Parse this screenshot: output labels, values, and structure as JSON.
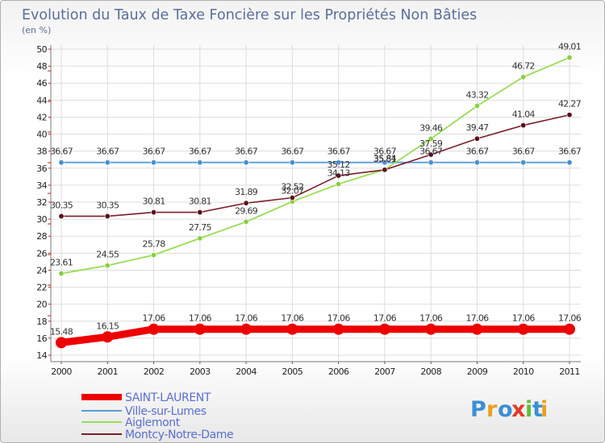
{
  "chart_data": {
    "type": "line",
    "title": "Evolution du Taux de Taxe Foncière sur les Propriétés Non Bâties",
    "subtitle": "(en %)",
    "x": [
      "2000",
      "2001",
      "2002",
      "2003",
      "2004",
      "2005",
      "2006",
      "2007",
      "2008",
      "2009",
      "2010",
      "2011"
    ],
    "ylim": [
      14,
      50
    ],
    "yticks": [
      14,
      16,
      18,
      20,
      22,
      24,
      26,
      28,
      30,
      32,
      34,
      36,
      38,
      40,
      42,
      44,
      46,
      48,
      50
    ],
    "legend_position": "bottom-left",
    "series": [
      {
        "name": "SAINT-LAURENT",
        "color": "#ee0000",
        "values": [
          15.48,
          16.15,
          17.06,
          17.06,
          17.06,
          17.06,
          17.06,
          17.06,
          17.06,
          17.06,
          17.06,
          17.06
        ],
        "labels": [
          "15.48",
          "16.15",
          "17.06",
          "17.06",
          "17.06",
          "17.06",
          "17.06",
          "17.06",
          "17.06",
          "17.06",
          "17.06",
          "17.06"
        ]
      },
      {
        "name": "Ville-sur-Lumes",
        "color": "#5b9bd5",
        "values": [
          36.67,
          36.67,
          36.67,
          36.67,
          36.67,
          36.67,
          36.67,
          36.67,
          36.67,
          36.67,
          36.67,
          36.67
        ],
        "labels": [
          "36.67",
          "36.67",
          "36.67",
          "36.67",
          "36.67",
          "36.67",
          "36.67",
          "36.67",
          "36.67",
          "36.67",
          "36.67",
          "36.67"
        ]
      },
      {
        "name": "Aiglemont",
        "color": "#99dd55",
        "values": [
          23.61,
          24.55,
          25.78,
          27.75,
          29.69,
          32.07,
          34.13,
          35.84,
          39.46,
          43.32,
          46.72,
          49.01
        ],
        "labels": [
          "23.61",
          "24.55",
          "25.78",
          "27.75",
          "29.69",
          "32.07",
          "34.13",
          "35.84",
          "39.46",
          "43.32",
          "46.72",
          "49.01"
        ]
      },
      {
        "name": "Montcy-Notre-Dame",
        "color": "#7a1f2a",
        "values": [
          30.35,
          30.35,
          30.81,
          30.81,
          31.89,
          32.52,
          35.12,
          35.81,
          37.59,
          39.47,
          41.04,
          42.27
        ],
        "labels": [
          "30.35",
          "30.35",
          "30.81",
          "30.81",
          "31.89",
          "32.52",
          "35.12",
          "35.81",
          "37.59",
          "39.47",
          "41.04",
          "42.27"
        ]
      }
    ]
  },
  "logo": {
    "text": "Proxiti",
    "letters": [
      "P",
      "r",
      "o",
      "x",
      "i",
      "t",
      "i"
    ],
    "colors": [
      "#3a8fd6",
      "#e8a020",
      "#3a8fd6",
      "#e23a2a",
      "#5bbf3a",
      "#3a8fd6",
      "#e8a020"
    ]
  }
}
